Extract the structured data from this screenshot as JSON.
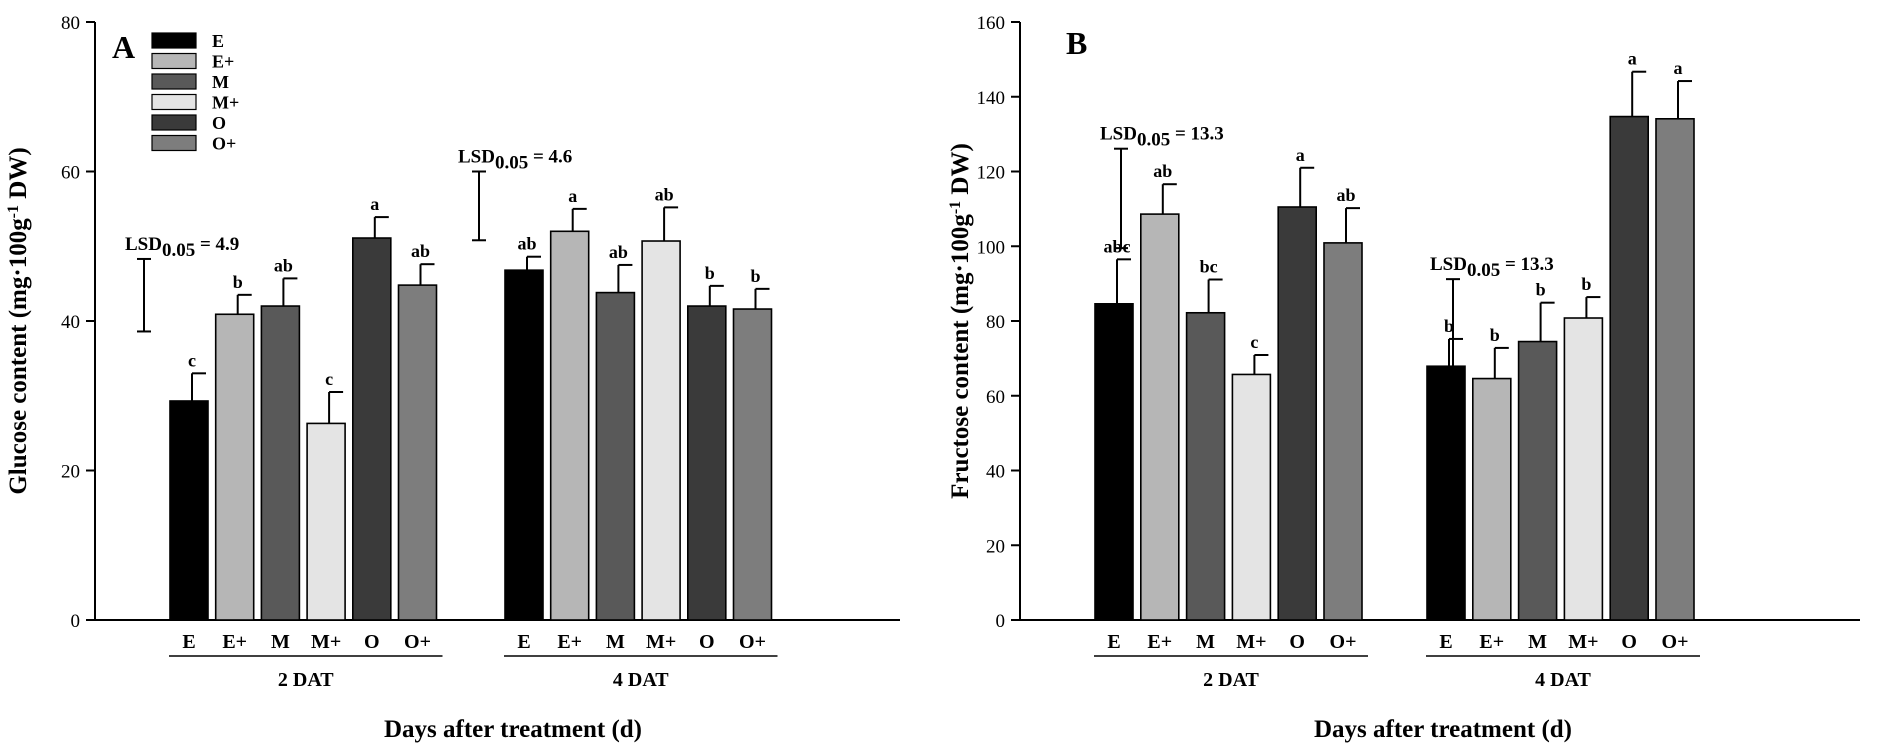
{
  "figure": {
    "xlabel": "Days after treatment (d)",
    "treatments": [
      "E",
      "E+",
      "M",
      "M+",
      "O",
      "O+"
    ],
    "groups": [
      "2 DAT",
      "4 DAT"
    ],
    "colors": {
      "E": "#000000",
      "E+": "#b6b6b6",
      "M": "#595959",
      "M+": "#e4e4e4",
      "O": "#3a3a3a",
      "O+": "#7d7d7d"
    }
  },
  "chart_data": [
    {
      "type": "bar",
      "panel": "A",
      "ylabel_main": "Glucose content (mg·100g",
      "ylabel_sup": "-1",
      "ylabel_tail": " DW)",
      "ylim": [
        0,
        80
      ],
      "yticks": [
        0,
        20,
        40,
        60,
        80
      ],
      "legend": [
        "E",
        "E+",
        "M",
        "M+",
        "O",
        "O+"
      ],
      "legend_position": "top-left",
      "groups": [
        "2 DAT",
        "4 DAT"
      ],
      "categories": [
        "E",
        "E+",
        "M",
        "M+",
        "O",
        "O+"
      ],
      "series": [
        {
          "group": "2 DAT",
          "values": [
            29.3,
            40.9,
            42.0,
            26.3,
            51.1,
            44.8
          ],
          "errors": [
            3.7,
            2.6,
            3.7,
            4.2,
            2.8,
            2.8
          ],
          "letters": [
            "c",
            "b",
            "ab",
            "c",
            "a",
            "ab"
          ]
        },
        {
          "group": "4 DAT",
          "values": [
            46.8,
            52.0,
            43.8,
            50.7,
            42.0,
            41.6
          ],
          "errors": [
            1.8,
            3.0,
            3.7,
            4.5,
            2.7,
            2.7
          ],
          "letters": [
            "ab",
            "a",
            "ab",
            "ab",
            "b",
            "b"
          ]
        }
      ],
      "lsd": [
        {
          "group": "2 DAT",
          "prefix": "LSD",
          "sub": "0.05",
          "suffix": " = 4.9",
          "low": 38.6,
          "high": 48.3
        },
        {
          "group": "4 DAT",
          "prefix": "LSD",
          "sub": "0.05",
          "suffix": " = 4.6",
          "low": 50.8,
          "high": 60.0
        }
      ]
    },
    {
      "type": "bar",
      "panel": "B",
      "ylabel_main": "Fructose content (mg·100g",
      "ylabel_sup": "-1",
      "ylabel_tail": " DW)",
      "ylim": [
        0,
        160
      ],
      "yticks": [
        0,
        20,
        40,
        60,
        80,
        100,
        120,
        140,
        160
      ],
      "legend": [],
      "groups": [
        "2 DAT",
        "4 DAT"
      ],
      "categories": [
        "E",
        "E+",
        "M",
        "M+",
        "O",
        "O+"
      ],
      "series": [
        {
          "group": "2 DAT",
          "values": [
            84.6,
            108.6,
            82.2,
            65.7,
            110.5,
            100.9
          ],
          "errors": [
            11.9,
            8.0,
            8.9,
            5.2,
            10.5,
            9.3
          ],
          "letters": [
            "abc",
            "ab",
            "bc",
            "c",
            "a",
            "ab"
          ]
        },
        {
          "group": "4 DAT",
          "values": [
            67.9,
            64.6,
            74.5,
            80.8,
            134.7,
            134.1
          ],
          "errors": [
            7.3,
            8.2,
            10.4,
            5.6,
            12.0,
            10.1
          ],
          "letters": [
            "b",
            "b",
            "b",
            "b",
            "a",
            "a"
          ]
        }
      ],
      "lsd": [
        {
          "group": "2 DAT",
          "prefix": "LSD",
          "sub": "0.05",
          "suffix": " = 13.3",
          "low": 99.5,
          "high": 126.1
        },
        {
          "group": "4 DAT",
          "prefix": "LSD",
          "sub": "0.05",
          "suffix": " = 13.3",
          "low": 64.6,
          "high": 91.2
        }
      ]
    }
  ]
}
